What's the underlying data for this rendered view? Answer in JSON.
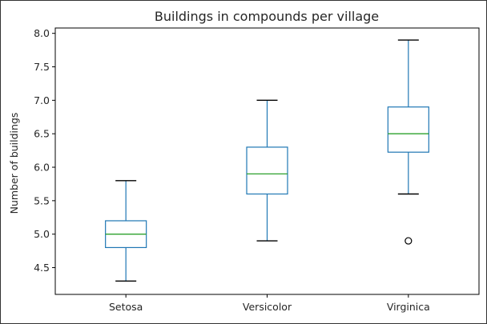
{
  "chart_data": {
    "type": "box",
    "title": "Buildings in compounds per village",
    "xlabel": "",
    "ylabel": "Number of buildings",
    "ylim": [
      4.1,
      8.08
    ],
    "yticks": [
      "4.5",
      "5.0",
      "5.5",
      "6.0",
      "6.5",
      "7.0",
      "7.5",
      "8.0"
    ],
    "categories": [
      "Setosa",
      "Versicolor",
      "Virginica"
    ],
    "series": [
      {
        "category": "Setosa",
        "whisker_low": 4.3,
        "q1": 4.8,
        "median": 5.0,
        "q3": 5.2,
        "whisker_high": 5.8,
        "outliers": []
      },
      {
        "category": "Versicolor",
        "whisker_low": 4.9,
        "q1": 5.6,
        "median": 5.9,
        "q3": 6.3,
        "whisker_high": 7.0,
        "outliers": []
      },
      {
        "category": "Virginica",
        "whisker_low": 5.6,
        "q1": 6.225,
        "median": 6.5,
        "q3": 6.9,
        "whisker_high": 7.9,
        "outliers": [
          4.9
        ]
      }
    ],
    "colors": {
      "box": "#1f77b4",
      "median": "#2ca02c",
      "outlier": "#000000"
    },
    "grid": false,
    "legend": "none"
  }
}
